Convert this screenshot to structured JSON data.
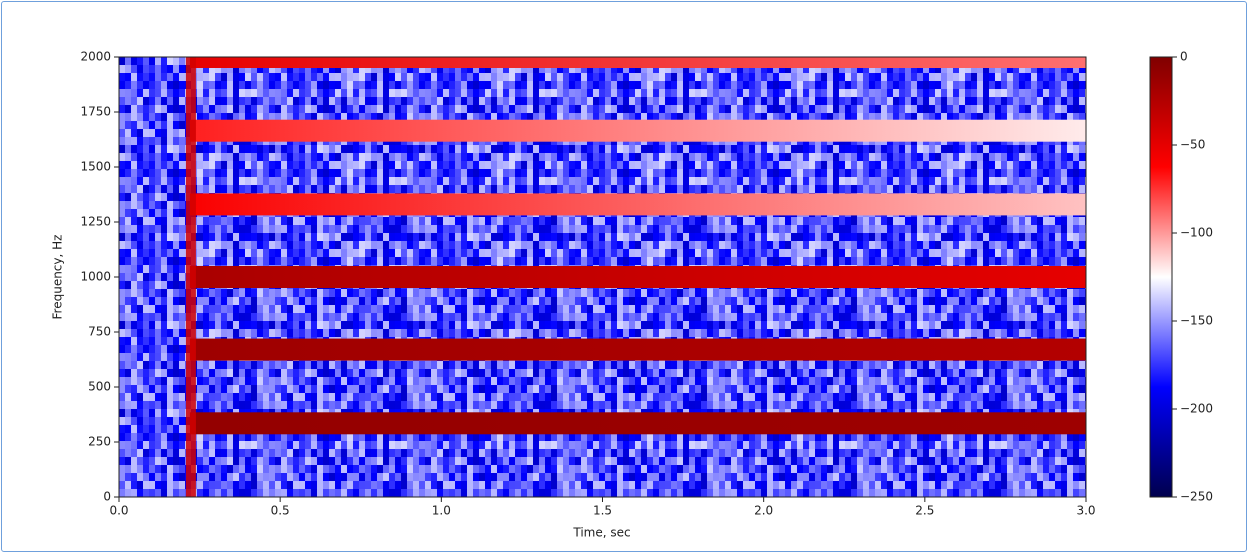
{
  "chart_data": {
    "type": "spectrogram",
    "xlabel": "Time, sec",
    "ylabel": "Frequency, Hz",
    "xlim": [
      0,
      3
    ],
    "ylim": [
      0,
      2000
    ],
    "xticks": [
      {
        "value": 0,
        "label": "0.0"
      },
      0.5,
      {
        "value": 1,
        "label": "1.0"
      },
      1.5,
      {
        "value": 2,
        "label": "2.0"
      },
      2.5,
      {
        "value": 3,
        "label": "3.0"
      }
    ],
    "yticks": [
      0,
      250,
      500,
      750,
      1000,
      1250,
      1500,
      1750,
      2000
    ],
    "clim": [
      -250,
      0
    ],
    "cticks": [
      {
        "value": 0,
        "label": "0"
      },
      {
        "value": -50,
        "label": "−50"
      },
      {
        "value": -100,
        "label": "−100"
      },
      {
        "value": -150,
        "label": "−150"
      },
      {
        "value": -200,
        "label": "−200"
      },
      {
        "value": -250,
        "label": "−250"
      }
    ],
    "colormap": "seismic",
    "noise_level": -170,
    "onset": {
      "time": 0.22,
      "level": -40
    },
    "bands": [
      {
        "frequency": 335,
        "level_start": -10,
        "level_end": -15
      },
      {
        "frequency": 670,
        "level_start": -15,
        "level_end": -25
      },
      {
        "frequency": 1000,
        "level_start": -20,
        "level_end": -50
      },
      {
        "frequency": 1330,
        "level_start": -60,
        "level_end": -110
      },
      {
        "frequency": 1665,
        "level_start": -70,
        "level_end": -120
      },
      {
        "frequency": 2000,
        "level_start": -50,
        "level_end": -90
      }
    ]
  }
}
